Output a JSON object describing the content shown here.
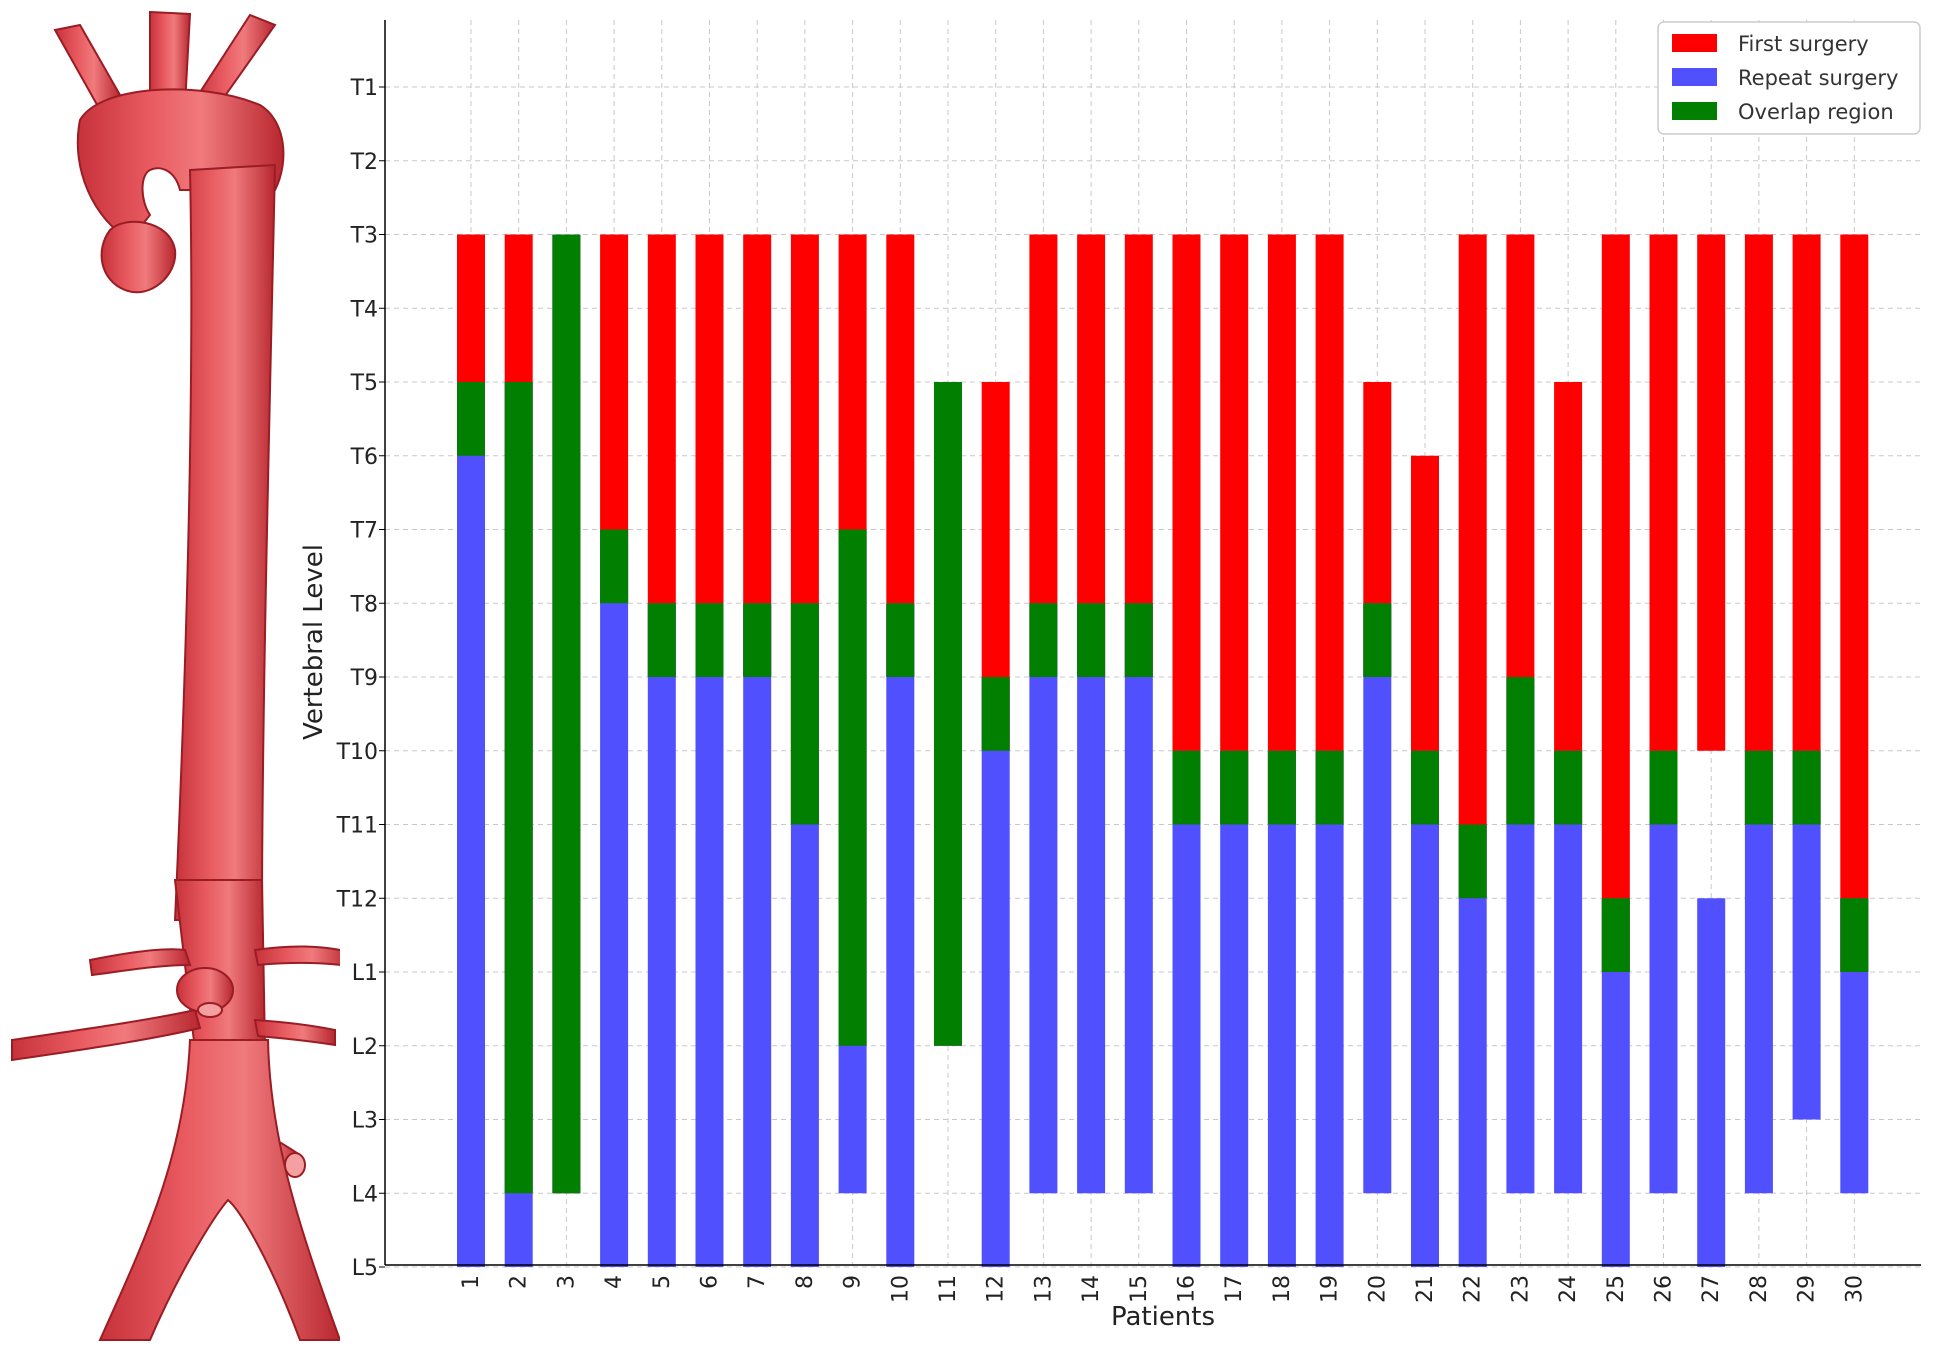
{
  "chart_data": {
    "type": "bar",
    "title": "",
    "xlabel": "Patients",
    "ylabel": "Vertebral Level",
    "levels": [
      "T1",
      "T2",
      "T3",
      "T4",
      "T5",
      "T6",
      "T7",
      "T8",
      "T9",
      "T10",
      "T11",
      "T12",
      "L1",
      "L2",
      "L3",
      "L4",
      "L5"
    ],
    "patients": [
      "1",
      "2",
      "3",
      "4",
      "5",
      "6",
      "7",
      "8",
      "9",
      "10",
      "11",
      "12",
      "13",
      "14",
      "15",
      "16",
      "17",
      "18",
      "19",
      "20",
      "21",
      "22",
      "23",
      "24",
      "25",
      "26",
      "27",
      "28",
      "29",
      "30"
    ],
    "colors": {
      "first": "#ff0000",
      "repeat": "#5050ff",
      "overlap": "#007f00"
    },
    "legend": [
      "First surgery",
      "Repeat surgery",
      "Overlap region"
    ],
    "legend_position": "top-right",
    "grid": true,
    "series": [
      {
        "patient": "1",
        "first": [
          "T3",
          "T6"
        ],
        "repeat": [
          "T5",
          "L5"
        ]
      },
      {
        "patient": "2",
        "first": [
          "T3",
          "L4"
        ],
        "repeat": [
          "T5",
          "L5"
        ]
      },
      {
        "patient": "3",
        "first": [
          "T3",
          "L4"
        ],
        "repeat": [
          "T3",
          "L4"
        ]
      },
      {
        "patient": "4",
        "first": [
          "T3",
          "T8"
        ],
        "repeat": [
          "T7",
          "L5"
        ]
      },
      {
        "patient": "5",
        "first": [
          "T3",
          "T9"
        ],
        "repeat": [
          "T8",
          "L5"
        ]
      },
      {
        "patient": "6",
        "first": [
          "T3",
          "T9"
        ],
        "repeat": [
          "T8",
          "L5"
        ]
      },
      {
        "patient": "7",
        "first": [
          "T3",
          "T9"
        ],
        "repeat": [
          "T8",
          "L5"
        ]
      },
      {
        "patient": "8",
        "first": [
          "T3",
          "T11"
        ],
        "repeat": [
          "T8",
          "L5"
        ]
      },
      {
        "patient": "9",
        "first": [
          "T3",
          "L2"
        ],
        "repeat": [
          "T7",
          "L4"
        ]
      },
      {
        "patient": "10",
        "first": [
          "T3",
          "T9"
        ],
        "repeat": [
          "T8",
          "L5"
        ]
      },
      {
        "patient": "11",
        "first": [
          "T5",
          "L2"
        ],
        "repeat": [
          "T5",
          "L2"
        ]
      },
      {
        "patient": "12",
        "first": [
          "T5",
          "T10"
        ],
        "repeat": [
          "T9",
          "L5"
        ]
      },
      {
        "patient": "13",
        "first": [
          "T3",
          "T9"
        ],
        "repeat": [
          "T8",
          "L4"
        ]
      },
      {
        "patient": "14",
        "first": [
          "T3",
          "T9"
        ],
        "repeat": [
          "T8",
          "L4"
        ]
      },
      {
        "patient": "15",
        "first": [
          "T3",
          "T9"
        ],
        "repeat": [
          "T8",
          "L4"
        ]
      },
      {
        "patient": "16",
        "first": [
          "T3",
          "T11"
        ],
        "repeat": [
          "T10",
          "L5"
        ]
      },
      {
        "patient": "17",
        "first": [
          "T3",
          "T11"
        ],
        "repeat": [
          "T10",
          "L5"
        ]
      },
      {
        "patient": "18",
        "first": [
          "T3",
          "T11"
        ],
        "repeat": [
          "T10",
          "L5"
        ]
      },
      {
        "patient": "19",
        "first": [
          "T3",
          "T11"
        ],
        "repeat": [
          "T10",
          "L5"
        ]
      },
      {
        "patient": "20",
        "first": [
          "T5",
          "T9"
        ],
        "repeat": [
          "T8",
          "L4"
        ]
      },
      {
        "patient": "21",
        "first": [
          "T6",
          "T11"
        ],
        "repeat": [
          "T10",
          "L5"
        ]
      },
      {
        "patient": "22",
        "first": [
          "T3",
          "T12"
        ],
        "repeat": [
          "T11",
          "L5"
        ]
      },
      {
        "patient": "23",
        "first": [
          "T3",
          "T11"
        ],
        "repeat": [
          "T9",
          "L4"
        ]
      },
      {
        "patient": "24",
        "first": [
          "T5",
          "T11"
        ],
        "repeat": [
          "T10",
          "L4"
        ]
      },
      {
        "patient": "25",
        "first": [
          "T3",
          "L1"
        ],
        "repeat": [
          "T12",
          "L5"
        ]
      },
      {
        "patient": "26",
        "first": [
          "T3",
          "T11"
        ],
        "repeat": [
          "T10",
          "L4"
        ]
      },
      {
        "patient": "27",
        "first": [
          "T3",
          "T10"
        ],
        "repeat": [
          "T12",
          "L5"
        ]
      },
      {
        "patient": "28",
        "first": [
          "T3",
          "T11"
        ],
        "repeat": [
          "T10",
          "L4"
        ]
      },
      {
        "patient": "29",
        "first": [
          "T3",
          "T11"
        ],
        "repeat": [
          "T10",
          "L3"
        ]
      },
      {
        "patient": "30",
        "first": [
          "T3",
          "L1"
        ],
        "repeat": [
          "T12",
          "L4"
        ]
      }
    ]
  }
}
